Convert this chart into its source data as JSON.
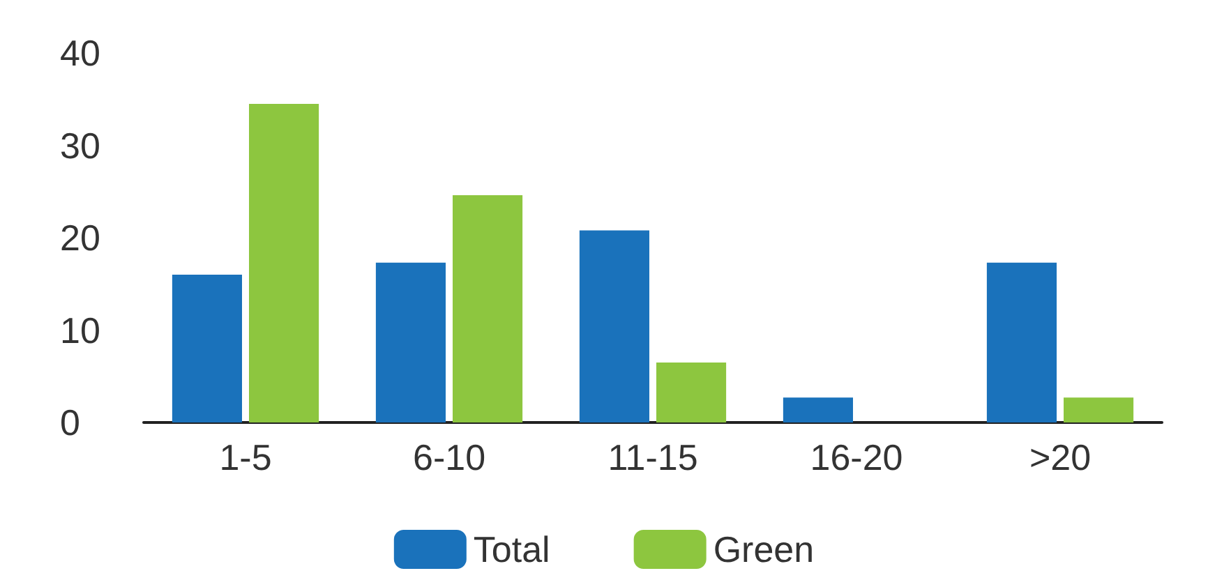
{
  "chart_data": {
    "type": "bar",
    "categories": [
      "1-5",
      "6-10",
      "11-15",
      "16-20",
      ">20"
    ],
    "series": [
      {
        "name": "Total",
        "color": "#1a72bb",
        "values": [
          16,
          17.3,
          20.8,
          2.7,
          17.3
        ]
      },
      {
        "name": "Green",
        "color": "#8dc63f",
        "values": [
          34.5,
          24.6,
          6.5,
          0,
          2.7
        ]
      }
    ],
    "ylim": [
      0,
      40
    ],
    "yticks": [
      0,
      10,
      20,
      30,
      40
    ],
    "grid": false,
    "legend": "bottom"
  }
}
